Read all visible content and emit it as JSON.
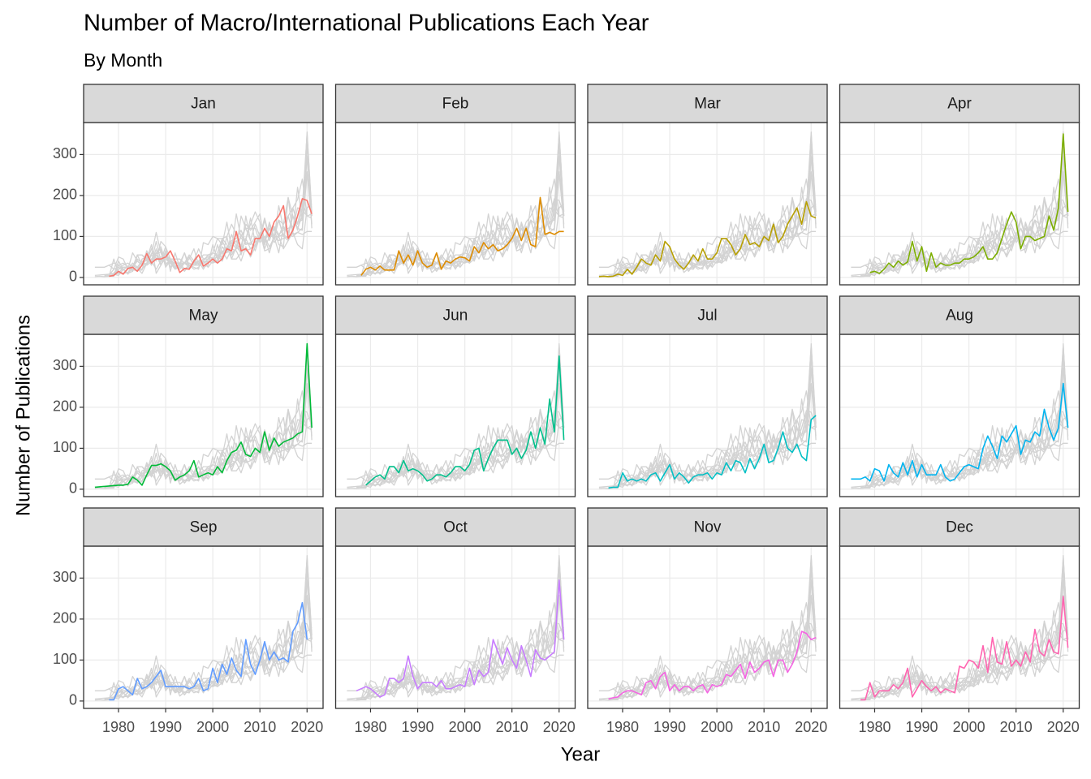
{
  "chart_data": {
    "type": "line",
    "title": "Number of Macro/International Publications Each Year",
    "subtitle": "By Month",
    "xlabel": "Year",
    "ylabel": "Number of Publications",
    "x": [
      1975,
      1976,
      1977,
      1978,
      1979,
      1980,
      1981,
      1982,
      1983,
      1984,
      1985,
      1986,
      1987,
      1988,
      1989,
      1990,
      1991,
      1992,
      1993,
      1994,
      1995,
      1996,
      1997,
      1998,
      1999,
      2000,
      2001,
      2002,
      2003,
      2004,
      2005,
      2006,
      2007,
      2008,
      2009,
      2010,
      2011,
      2012,
      2013,
      2014,
      2015,
      2016,
      2017,
      2018,
      2019,
      2020,
      2021
    ],
    "xlim": [
      1972.6,
      2023.4
    ],
    "xticks": [
      1980,
      1990,
      2000,
      2010,
      2020
    ],
    "ylim": [
      -18,
      378
    ],
    "yticks": [
      0,
      100,
      200,
      300
    ],
    "grid": true,
    "series": [
      {
        "name": "Jan",
        "color": "#F8766D",
        "values": [
          null,
          null,
          null,
          3,
          5,
          15,
          8,
          22,
          25,
          15,
          30,
          58,
          35,
          45,
          45,
          50,
          65,
          40,
          12,
          22,
          20,
          40,
          55,
          28,
          35,
          45,
          35,
          45,
          70,
          65,
          112,
          65,
          70,
          55,
          95,
          95,
          120,
          100,
          135,
          150,
          175,
          95,
          115,
          150,
          192,
          188,
          155
        ]
      },
      {
        "name": "Feb",
        "color": "#DE8C00",
        "values": [
          null,
          null,
          null,
          5,
          20,
          25,
          18,
          28,
          18,
          18,
          18,
          65,
          35,
          55,
          30,
          65,
          35,
          25,
          30,
          60,
          20,
          40,
          35,
          45,
          50,
          48,
          40,
          75,
          60,
          85,
          70,
          80,
          65,
          70,
          80,
          95,
          120,
          90,
          120,
          80,
          75,
          195,
          105,
          110,
          105,
          112,
          112
        ]
      },
      {
        "name": "Mar",
        "color": "#B79F00",
        "values": [
          2,
          3,
          2,
          3,
          8,
          5,
          20,
          8,
          25,
          45,
          35,
          30,
          55,
          40,
          88,
          75,
          45,
          30,
          20,
          35,
          55,
          40,
          70,
          45,
          45,
          60,
          95,
          95,
          80,
          55,
          70,
          105,
          80,
          85,
          75,
          100,
          90,
          130,
          85,
          100,
          130,
          150,
          170,
          130,
          185,
          150,
          145
        ]
      },
      {
        "name": "Apr",
        "color": "#7CAE00",
        "values": [
          null,
          null,
          null,
          null,
          12,
          15,
          10,
          20,
          35,
          25,
          40,
          30,
          38,
          88,
          40,
          75,
          15,
          60,
          25,
          35,
          30,
          30,
          35,
          35,
          45,
          45,
          50,
          60,
          75,
          45,
          45,
          60,
          95,
          130,
          160,
          135,
          70,
          100,
          100,
          90,
          95,
          100,
          150,
          115,
          170,
          350,
          160
        ]
      },
      {
        "name": "May",
        "color": "#00BA38",
        "values": [
          5,
          6,
          7,
          8,
          9,
          10,
          10,
          12,
          30,
          22,
          10,
          35,
          58,
          58,
          62,
          55,
          45,
          22,
          30,
          35,
          45,
          70,
          30,
          35,
          40,
          35,
          55,
          40,
          70,
          90,
          95,
          115,
          85,
          80,
          100,
          90,
          140,
          95,
          125,
          105,
          115,
          120,
          125,
          135,
          140,
          355,
          150
        ]
      },
      {
        "name": "Jun",
        "color": "#00C08B",
        "values": [
          null,
          null,
          null,
          null,
          10,
          20,
          30,
          35,
          25,
          55,
          55,
          40,
          70,
          45,
          50,
          45,
          35,
          20,
          25,
          35,
          35,
          30,
          40,
          55,
          55,
          45,
          60,
          95,
          100,
          45,
          75,
          100,
          120,
          120,
          120,
          85,
          100,
          75,
          95,
          140,
          100,
          150,
          110,
          220,
          140,
          325,
          120
        ]
      },
      {
        "name": "Jul",
        "color": "#00BFC4",
        "values": [
          null,
          null,
          3,
          5,
          5,
          40,
          20,
          25,
          20,
          25,
          20,
          35,
          40,
          20,
          40,
          60,
          25,
          40,
          30,
          15,
          30,
          35,
          35,
          40,
          25,
          40,
          35,
          65,
          45,
          70,
          65,
          40,
          75,
          50,
          75,
          110,
          65,
          70,
          100,
          140,
          100,
          90,
          110,
          80,
          70,
          170,
          180
        ]
      },
      {
        "name": "Aug",
        "color": "#00B4F0",
        "values": [
          25,
          25,
          25,
          30,
          20,
          50,
          45,
          20,
          60,
          40,
          30,
          65,
          35,
          70,
          30,
          60,
          35,
          35,
          35,
          60,
          30,
          20,
          25,
          40,
          55,
          60,
          55,
          50,
          100,
          130,
          105,
          75,
          130,
          115,
          135,
          155,
          85,
          120,
          115,
          140,
          130,
          195,
          150,
          120,
          150,
          258,
          150
        ]
      },
      {
        "name": "Sep",
        "color": "#619CFF",
        "values": [
          null,
          null,
          null,
          3,
          3,
          30,
          35,
          25,
          15,
          55,
          30,
          35,
          45,
          60,
          75,
          35,
          35,
          35,
          35,
          35,
          30,
          35,
          55,
          25,
          30,
          80,
          45,
          90,
          65,
          105,
          75,
          60,
          150,
          90,
          65,
          100,
          145,
          100,
          120,
          100,
          105,
          95,
          170,
          190,
          240,
          150,
          null
        ]
      },
      {
        "name": "Oct",
        "color": "#C77CFF",
        "values": [
          null,
          null,
          25,
          30,
          35,
          30,
          20,
          10,
          15,
          55,
          55,
          45,
          55,
          110,
          60,
          30,
          45,
          45,
          45,
          35,
          50,
          30,
          30,
          35,
          40,
          35,
          80,
          40,
          75,
          60,
          70,
          150,
          120,
          90,
          130,
          100,
          80,
          135,
          100,
          60,
          125,
          105,
          100,
          110,
          120,
          295,
          150
        ]
      },
      {
        "name": "Nov",
        "color": "#F564E3",
        "values": [
          null,
          null,
          5,
          8,
          10,
          20,
          25,
          25,
          20,
          15,
          45,
          50,
          30,
          60,
          70,
          25,
          40,
          25,
          35,
          35,
          25,
          35,
          40,
          20,
          40,
          35,
          40,
          65,
          60,
          75,
          90,
          55,
          95,
          70,
          80,
          95,
          100,
          60,
          100,
          100,
          70,
          90,
          120,
          170,
          165,
          150,
          155
        ]
      },
      {
        "name": "Dec",
        "color": "#FF64B0",
        "values": [
          null,
          null,
          3,
          3,
          45,
          10,
          25,
          25,
          25,
          40,
          30,
          45,
          80,
          10,
          30,
          50,
          35,
          25,
          35,
          20,
          30,
          25,
          20,
          85,
          80,
          100,
          95,
          80,
          135,
          70,
          155,
          95,
          90,
          145,
          85,
          100,
          85,
          120,
          95,
          175,
          120,
          110,
          150,
          120,
          115,
          255,
          130
        ]
      }
    ]
  }
}
